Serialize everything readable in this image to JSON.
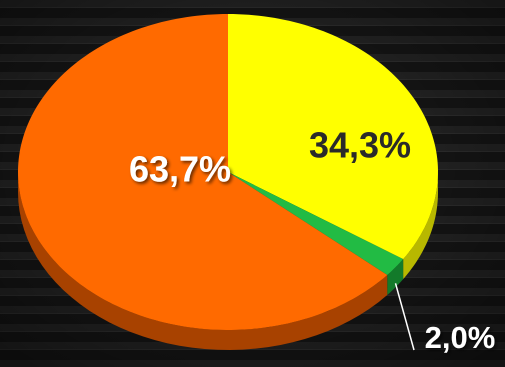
{
  "chart_data": {
    "type": "pie",
    "style": "3d",
    "background": "dark striped",
    "slices": [
      {
        "label": "34,3%",
        "value": 34.3,
        "color": "#ffff00",
        "side_color": "#b8b800",
        "label_color": "#2a2a2a"
      },
      {
        "label": "2,0%",
        "value": 2.0,
        "color": "#22bb44",
        "side_color": "#137a2a",
        "label_color": "#ffffff"
      },
      {
        "label": "63,7%",
        "value": 63.7,
        "color": "#ff6a00",
        "side_color": "#a84200",
        "label_color": "#ffffff"
      }
    ]
  }
}
